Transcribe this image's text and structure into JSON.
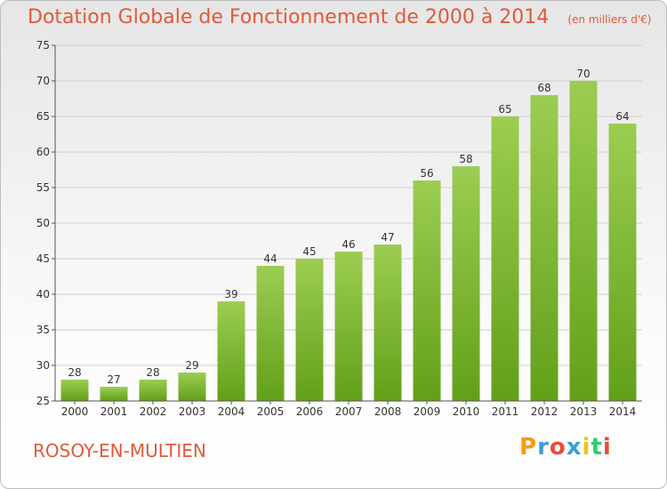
{
  "header": {
    "title": "Dotation Globale de Fonctionnement de 2000 à 2014",
    "unit": "(en milliers d'€)"
  },
  "footer": {
    "commune": "ROSOY-EN-MULTIEN",
    "logo_text": "Proxiti"
  },
  "colors": {
    "title": "#e05a3a",
    "bar_top": "#9ccd52",
    "bar_bottom": "#62a019",
    "grid": "#cfcfcf",
    "axis_text": "#333333"
  },
  "chart_data": {
    "type": "bar",
    "title": "Dotation Globale de Fonctionnement de 2000 à 2014",
    "xlabel": "",
    "ylabel": "",
    "ylim": [
      25,
      75
    ],
    "yticks": [
      25,
      30,
      35,
      40,
      45,
      50,
      55,
      60,
      65,
      70,
      75
    ],
    "grid": true,
    "categories": [
      "2000",
      "2001",
      "2002",
      "2003",
      "2004",
      "2005",
      "2006",
      "2007",
      "2008",
      "2009",
      "2010",
      "2011",
      "2012",
      "2013",
      "2014"
    ],
    "values": [
      28,
      27,
      28,
      29,
      39,
      44,
      45,
      46,
      47,
      56,
      58,
      65,
      68,
      70,
      64
    ]
  }
}
